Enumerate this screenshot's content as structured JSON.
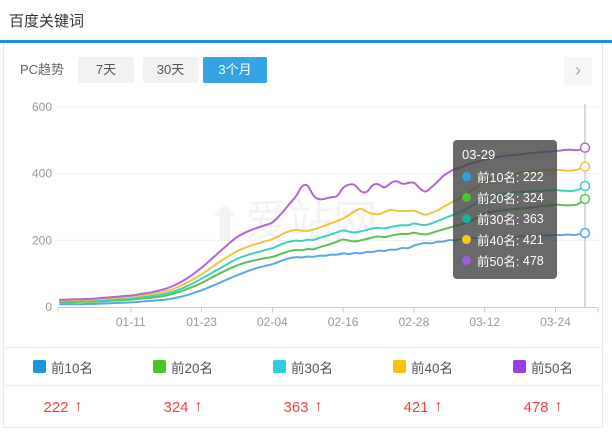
{
  "header": {
    "title": "百度关键词"
  },
  "controls": {
    "label": "PC趋势",
    "tabs": [
      {
        "label": "7天",
        "active": false
      },
      {
        "label": "30天",
        "active": false
      },
      {
        "label": "3个月",
        "active": true
      }
    ],
    "next_arrow": "›"
  },
  "watermark": {
    "icon": "⬆",
    "text": "爱站网"
  },
  "chart_data": {
    "type": "line",
    "title": "百度关键词 PC趋势 3个月",
    "grid": true,
    "x_axis": {
      "tick_labels": [
        "01-11",
        "01-23",
        "02-04",
        "02-16",
        "02-28",
        "03-12",
        "03-24"
      ],
      "tick_indices": [
        12,
        24,
        36,
        48,
        60,
        72,
        84
      ],
      "hover_index": 89,
      "hover_label": "03-29"
    },
    "y_axis": {
      "ticks": [
        0,
        200,
        400,
        600
      ],
      "min": 0,
      "max": 600
    },
    "series": [
      {
        "name": "前10名",
        "color": "#58a8e8",
        "ui_color": "#2093dd",
        "final_value": 222,
        "values": [
          8,
          8,
          9,
          8,
          9,
          9,
          9,
          10,
          11,
          12,
          12,
          13,
          14,
          15,
          17,
          18,
          19,
          21,
          22,
          25,
          29,
          33,
          38,
          44,
          50,
          57,
          65,
          72,
          80,
          88,
          95,
          102,
          109,
          115,
          120,
          124,
          128,
          135,
          142,
          147,
          150,
          148,
          152,
          150,
          155,
          153,
          158,
          156,
          162,
          158,
          163,
          160,
          166,
          164,
          170,
          167,
          173,
          171,
          178,
          175,
          185,
          189,
          193,
          190,
          197,
          195,
          202,
          199,
          205,
          203,
          208,
          206,
          210,
          208,
          211,
          209,
          212,
          210,
          213,
          211,
          214,
          212,
          216,
          214,
          217,
          215,
          218,
          216,
          218,
          222
        ]
      },
      {
        "name": "前20名",
        "color": "#5fc052",
        "ui_color": "#4dc426",
        "final_value": 324,
        "values": [
          14,
          14,
          15,
          15,
          16,
          16,
          16,
          17,
          18,
          19,
          20,
          21,
          22,
          24,
          26,
          27,
          29,
          31,
          34,
          39,
          44,
          50,
          57,
          64,
          72,
          81,
          91,
          100,
          109,
          117,
          125,
          131,
          136,
          140,
          144,
          147,
          150,
          156,
          163,
          168,
          172,
          169,
          175,
          172,
          180,
          184,
          190,
          196,
          204,
          199,
          196,
          200,
          204,
          209,
          212,
          209,
          214,
          217,
          220,
          218,
          224,
          219,
          217,
          222,
          228,
          233,
          238,
          243,
          248,
          253,
          261,
          271,
          282,
          285,
          288,
          290,
          292,
          294,
          296,
          297,
          299,
          301,
          303,
          305,
          307,
          306,
          305,
          305,
          309,
          324
        ]
      },
      {
        "name": "前30名",
        "color": "#3ed0c2",
        "ui_color": "#29cfe0",
        "final_value": 363,
        "values": [
          17,
          17,
          18,
          18,
          19,
          19,
          19,
          20,
          21,
          22,
          24,
          25,
          26,
          28,
          30,
          32,
          34,
          37,
          40,
          45,
          51,
          58,
          66,
          75,
          85,
          95,
          105,
          115,
          125,
          135,
          145,
          151,
          157,
          162,
          167,
          172,
          176,
          184,
          192,
          196,
          200,
          197,
          203,
          200,
          208,
          212,
          218,
          224,
          231,
          226,
          223,
          227,
          231,
          236,
          238,
          235,
          240,
          243,
          246,
          244,
          252,
          247,
          245,
          251,
          258,
          265,
          272,
          279,
          287,
          295,
          306,
          318,
          330,
          333,
          336,
          339,
          341,
          343,
          345,
          346,
          347,
          348,
          349,
          350,
          351,
          349,
          348,
          348,
          352,
          363
        ]
      },
      {
        "name": "前40名",
        "color": "#efc440",
        "ui_color": "#f7c500",
        "final_value": 421,
        "values": [
          20,
          20,
          21,
          21,
          22,
          22,
          22,
          24,
          25,
          27,
          28,
          29,
          30,
          32,
          35,
          37,
          40,
          43,
          47,
          53,
          60,
          68,
          77,
          87,
          98,
          110,
          123,
          135,
          146,
          157,
          168,
          175,
          182,
          188,
          193,
          198,
          203,
          212,
          222,
          228,
          232,
          229,
          227,
          233,
          238,
          245,
          252,
          258,
          265,
          276,
          288,
          297,
          285,
          279,
          277,
          285,
          292,
          289,
          287,
          288,
          290,
          282,
          275,
          283,
          290,
          300,
          310,
          320,
          330,
          340,
          352,
          365,
          378,
          384,
          389,
          393,
          397,
          400,
          403,
          405,
          407,
          409,
          410,
          411,
          412,
          410,
          409,
          409,
          413,
          421
        ]
      },
      {
        "name": "前50名",
        "color": "#b066d8",
        "ui_color": "#9c3ce5",
        "final_value": 478,
        "values": [
          22,
          22,
          23,
          23,
          24,
          24,
          25,
          27,
          28,
          30,
          31,
          33,
          34,
          37,
          40,
          42,
          46,
          50,
          55,
          62,
          70,
          80,
          91,
          104,
          118,
          133,
          149,
          165,
          180,
          196,
          210,
          220,
          228,
          235,
          241,
          247,
          252,
          270,
          290,
          312,
          330,
          365,
          368,
          330,
          322,
          325,
          330,
          330,
          360,
          368,
          368,
          345,
          342,
          368,
          370,
          355,
          372,
          380,
          368,
          372,
          375,
          355,
          343,
          360,
          375,
          395,
          405,
          415,
          418,
          428,
          432,
          438,
          442,
          446,
          450,
          452,
          455,
          456,
          458,
          460,
          462,
          463,
          465,
          466,
          468,
          470,
          472,
          471,
          470,
          478
        ]
      }
    ]
  },
  "tooltip": {
    "date": "03-29",
    "rows": [
      {
        "label": "前10名:",
        "value": "222",
        "color": "#2ea0e8"
      },
      {
        "label": "前20名:",
        "value": "324",
        "color": "#43c737"
      },
      {
        "label": "前30名:",
        "value": "363",
        "color": "#16b3a3"
      },
      {
        "label": "前40名:",
        "value": "421",
        "color": "#f7c918"
      },
      {
        "label": "前50名:",
        "value": "478",
        "color": "#a55be0"
      }
    ]
  },
  "legend": {
    "items": [
      {
        "label": "前10名",
        "color": "#2093dd"
      },
      {
        "label": "前20名",
        "color": "#4dc426"
      },
      {
        "label": "前30名",
        "color": "#29cfe0"
      },
      {
        "label": "前40名",
        "color": "#f7c500"
      },
      {
        "label": "前50名",
        "color": "#9c3ce5"
      }
    ]
  },
  "summary": {
    "items": [
      {
        "value": "222",
        "arrow": "↑"
      },
      {
        "value": "324",
        "arrow": "↑"
      },
      {
        "value": "363",
        "arrow": "↑"
      },
      {
        "value": "421",
        "arrow": "↑"
      },
      {
        "value": "478",
        "arrow": "↑"
      }
    ]
  },
  "colors": {
    "accent_blue": "#1b92e0",
    "active_tab": "#36a3e4",
    "value_red": "#f5413d"
  }
}
